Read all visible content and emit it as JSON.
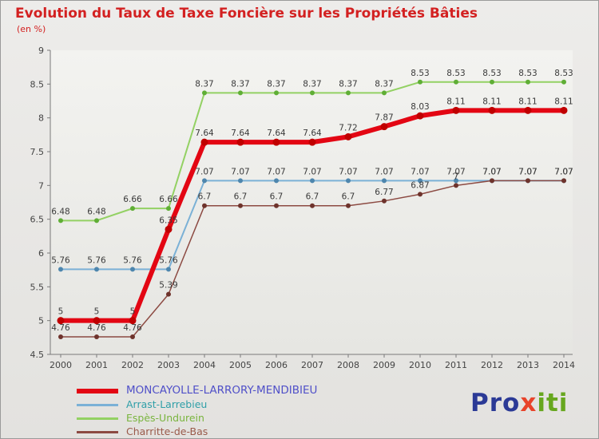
{
  "chart_data": {
    "type": "line",
    "title": "Evolution du Taux de Taxe Foncière sur les Propriétés Bâties",
    "subtitle": "(en %)",
    "x": [
      "2000",
      "2001",
      "2002",
      "2003",
      "2004",
      "2005",
      "2006",
      "2007",
      "2008",
      "2009",
      "2010",
      "2011",
      "2012",
      "2013",
      "2014"
    ],
    "ylim": [
      4.5,
      9
    ],
    "yticks": [
      9,
      8.5,
      8,
      7.5,
      7,
      6.5,
      6,
      5.5,
      5,
      4.5
    ],
    "ytick_labels": [
      "9",
      "8.5",
      "8",
      "7.5",
      "7",
      "6.5",
      "6",
      "5.5",
      "5",
      "4.5"
    ],
    "grid": false,
    "legend_position": "bottom-left",
    "series": [
      {
        "name": "MONCAYOLLE-LARRORY-MENDIBIEU",
        "color": "#e30613",
        "marker_color": "#c00000",
        "legend_text_color": "#5050c8",
        "line_width": 6,
        "values": [
          5,
          5,
          5,
          6.35,
          7.64,
          7.64,
          7.64,
          7.64,
          7.72,
          7.87,
          8.03,
          8.11,
          8.11,
          8.11,
          8.11
        ],
        "labels": [
          "5",
          "5",
          "5",
          "6.35",
          "7.64",
          "7.64",
          "7.64",
          "7.64",
          "7.72",
          "7.87",
          "8.03",
          "8.11",
          "8.11",
          "8.11",
          "8.11"
        ]
      },
      {
        "name": "Arrast-Larrebieu",
        "color": "#7bb1d6",
        "marker_color": "#4e86ad",
        "legend_text_color": "#2f9fa8",
        "line_width": 2,
        "values": [
          5.76,
          5.76,
          5.76,
          5.76,
          7.07,
          7.07,
          7.07,
          7.07,
          7.07,
          7.07,
          7.07,
          7.07,
          7.07,
          7.07,
          7.07
        ],
        "labels": [
          "5.76",
          "5.76",
          "5.76",
          "5.76",
          "7.07",
          "7.07",
          "7.07",
          "7.07",
          "7.07",
          "7.07",
          "7.07",
          "7.07",
          "7.07",
          "7.07",
          "7.07"
        ]
      },
      {
        "name": "Espès-Undurein",
        "color": "#93d163",
        "marker_color": "#5fae35",
        "legend_text_color": "#79b43e",
        "line_width": 2,
        "values": [
          6.48,
          6.48,
          6.66,
          6.66,
          8.37,
          8.37,
          8.37,
          8.37,
          8.37,
          8.37,
          8.53,
          8.53,
          8.53,
          8.53,
          8.53
        ],
        "labels": [
          "6.48",
          "6.48",
          "6.66",
          "6.66",
          "8.37",
          "8.37",
          "8.37",
          "8.37",
          "8.37",
          "8.37",
          "8.53",
          "8.53",
          "8.53",
          "8.53",
          "8.53"
        ]
      },
      {
        "name": "Charritte-de-Bas",
        "color": "#8c4a42",
        "marker_color": "#6e332c",
        "legend_text_color": "#9a5a4a",
        "line_width": 1.5,
        "values": [
          4.76,
          4.76,
          4.76,
          5.39,
          6.7,
          6.7,
          6.7,
          6.7,
          6.7,
          6.77,
          6.87,
          7,
          7.07,
          7.07,
          7.07
        ],
        "labels": [
          "4.76",
          "4.76",
          "4.76",
          "5.39",
          "6.7",
          "6.7",
          "6.7",
          "6.7",
          "6.7",
          "6.77",
          "6.87",
          "7",
          "7.07",
          "7.07",
          "7.07"
        ]
      }
    ]
  },
  "legend": {
    "items": [
      "MONCAYOLLE-LARRORY-MENDIBIEU",
      "Arrast-Larrebieu",
      "Espès-Undurein",
      "Charritte-de-Bas"
    ]
  },
  "logo": {
    "text": "Proxiti",
    "parts": [
      {
        "text": "Pro",
        "color": "#2b3a96"
      },
      {
        "text": "x",
        "color": "#e8432a"
      },
      {
        "text": "iti",
        "color": "#67a71f"
      }
    ]
  }
}
